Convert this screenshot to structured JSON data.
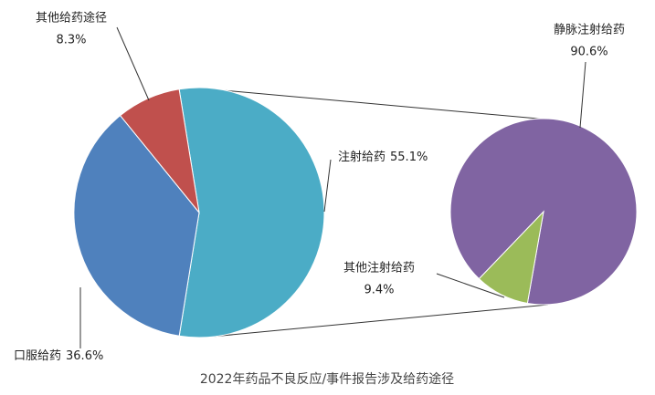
{
  "chart_data": [
    {
      "type": "pie",
      "title": "2022年药品不良反应/事件报告涉及给药途径",
      "categories": [
        "注射给药",
        "口服给药",
        "其他给药途径"
      ],
      "values": [
        55.1,
        36.6,
        8.3
      ],
      "value_labels": [
        "55.1%",
        "36.6%",
        "8.3%"
      ],
      "colors": [
        "#4bacc6",
        "#4f81bd",
        "#c0504d"
      ]
    },
    {
      "type": "pie",
      "categories": [
        "静脉注射给药",
        "其他注射给药"
      ],
      "values": [
        90.6,
        9.4
      ],
      "value_labels": [
        "90.6%",
        "9.4%"
      ],
      "colors": [
        "#8064a2",
        "#9bbb59"
      ]
    }
  ]
}
